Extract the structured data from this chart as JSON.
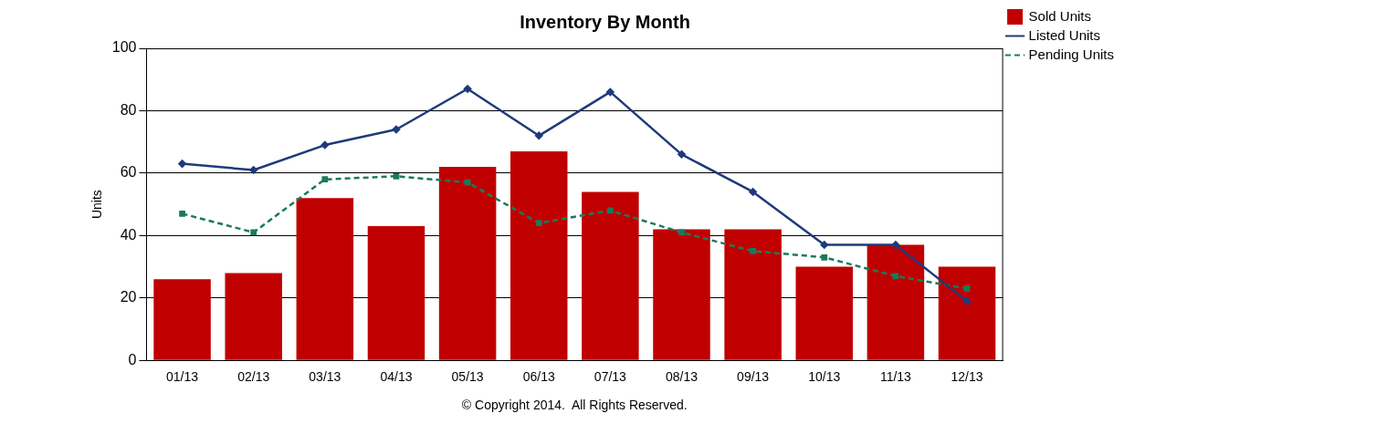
{
  "chart_data": {
    "type": "bar",
    "title": "Inventory By Month",
    "ylabel": "Units",
    "categories": [
      "01/13",
      "02/13",
      "03/13",
      "04/13",
      "05/13",
      "06/13",
      "07/13",
      "08/13",
      "09/13",
      "10/13",
      "11/13",
      "12/13"
    ],
    "series": [
      {
        "name": "Sold Units",
        "color": "#c00000",
        "values": [
          26,
          28,
          52,
          43,
          62,
          67,
          54,
          42,
          42,
          30,
          37,
          30
        ]
      },
      {
        "name": "Listed Units",
        "type": "line",
        "color": "#1f3a7a",
        "marker": "diamond",
        "line_style": "solid",
        "values": [
          63,
          61,
          69,
          74,
          87,
          72,
          86,
          66,
          54,
          37,
          37,
          19
        ]
      },
      {
        "name": "Pending Units",
        "type": "line",
        "color": "#1a7a5a",
        "marker": "square",
        "line_style": "dashed",
        "values": [
          47,
          41,
          58,
          59,
          57,
          44,
          48,
          41,
          35,
          33,
          27,
          23
        ]
      }
    ],
    "ylim": [
      0,
      100
    ],
    "yticks": [
      0,
      20,
      40,
      60,
      80,
      100
    ],
    "grid": "y",
    "legend": "top right",
    "annotations": [
      "© Copyright 2014.  All Rights Reserved."
    ]
  }
}
